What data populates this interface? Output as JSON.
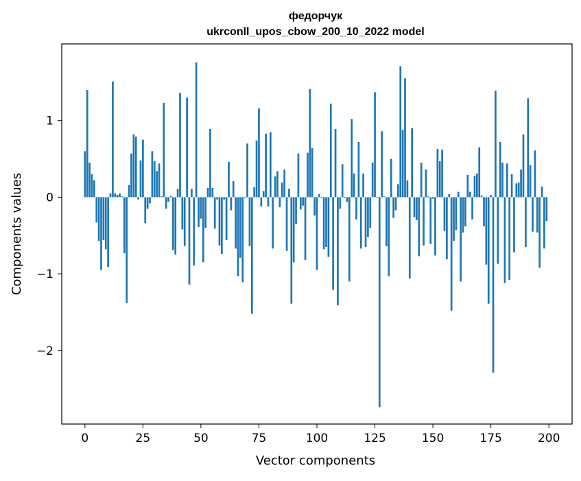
{
  "chart_data": {
    "type": "bar",
    "title": "федорчук",
    "subtitle": "ukrconll_upos_cbow_200_10_2022 model",
    "xlabel": "Vector components",
    "ylabel": "Components values",
    "xlim": [
      -10,
      210
    ],
    "ylim": [
      -2.96,
      2.0
    ],
    "xticks": [
      0,
      25,
      50,
      75,
      100,
      125,
      150,
      175,
      200
    ],
    "yticks": [
      -2,
      -1,
      0,
      1
    ],
    "ytick_labels": [
      "−2",
      "−1",
      "0",
      "1"
    ],
    "grid": false,
    "bar_color": "#1f77b4",
    "x": [
      0,
      1,
      2,
      3,
      4,
      5,
      6,
      7,
      8,
      9,
      10,
      11,
      12,
      13,
      14,
      15,
      16,
      17,
      18,
      19,
      20,
      21,
      22,
      23,
      24,
      25,
      26,
      27,
      28,
      29,
      30,
      31,
      32,
      33,
      34,
      35,
      36,
      37,
      38,
      39,
      40,
      41,
      42,
      43,
      44,
      45,
      46,
      47,
      48,
      49,
      50,
      51,
      52,
      53,
      54,
      55,
      56,
      57,
      58,
      59,
      60,
      61,
      62,
      63,
      64,
      65,
      66,
      67,
      68,
      69,
      70,
      71,
      72,
      73,
      74,
      75,
      76,
      77,
      78,
      79,
      80,
      81,
      82,
      83,
      84,
      85,
      86,
      87,
      88,
      89,
      90,
      91,
      92,
      93,
      94,
      95,
      96,
      97,
      98,
      99,
      100,
      101,
      102,
      103,
      104,
      105,
      106,
      107,
      108,
      109,
      110,
      111,
      112,
      113,
      114,
      115,
      116,
      117,
      118,
      119,
      120,
      121,
      122,
      123,
      124,
      125,
      126,
      127,
      128,
      129,
      130,
      131,
      132,
      133,
      134,
      135,
      136,
      137,
      138,
      139,
      140,
      141,
      142,
      143,
      144,
      145,
      146,
      147,
      148,
      149,
      150,
      151,
      152,
      153,
      154,
      155,
      156,
      157,
      158,
      159,
      160,
      161,
      162,
      163,
      164,
      165,
      166,
      167,
      168,
      169,
      170,
      171,
      172,
      173,
      174,
      175,
      176,
      177,
      178,
      179,
      180,
      181,
      182,
      183,
      184,
      185,
      186,
      187,
      188,
      189,
      190,
      191,
      192,
      193,
      194,
      195,
      196,
      197,
      198,
      199
    ],
    "values": [
      0.6,
      1.4,
      0.45,
      0.3,
      0.22,
      -0.33,
      -0.57,
      -0.95,
      -0.56,
      -0.68,
      -0.91,
      0.05,
      1.51,
      0.05,
      0.03,
      0.05,
      0.01,
      -0.73,
      -1.38,
      0.16,
      0.57,
      0.82,
      0.79,
      -0.03,
      0.48,
      0.75,
      -0.34,
      -0.15,
      -0.08,
      0.6,
      0.47,
      0.34,
      0.44,
      0.01,
      1.23,
      -0.15,
      -0.06,
      0.02,
      -0.69,
      -0.75,
      0.11,
      1.36,
      -0.42,
      -0.64,
      1.3,
      -1.14,
      0.11,
      -0.89,
      1.76,
      -0.39,
      -0.28,
      -0.85,
      -0.4,
      0.12,
      0.89,
      0.12,
      -0.41,
      -0.03,
      -0.63,
      -0.74,
      -0.03,
      -0.56,
      0.46,
      -0.17,
      0.21,
      -0.67,
      -1.03,
      -0.79,
      -1.11,
      -0.01,
      0.7,
      -0.64,
      -1.52,
      0.13,
      0.74,
      1.16,
      -0.12,
      0.08,
      0.83,
      -0.12,
      0.85,
      -0.67,
      0.27,
      0.34,
      -0.13,
      0.19,
      0.36,
      -0.7,
      0.11,
      -1.39,
      -0.85,
      -0.35,
      0.57,
      -0.16,
      -0.11,
      -0.82,
      0.58,
      1.41,
      0.64,
      -0.24,
      -0.95,
      0.04,
      -0.01,
      -0.68,
      -0.65,
      -0.78,
      1.22,
      -1.21,
      0.89,
      -1.41,
      -0.15,
      0.43,
      -0.01,
      -0.06,
      -1.1,
      1.02,
      0.31,
      -0.29,
      0.72,
      -0.67,
      0.31,
      -0.65,
      -0.52,
      -0.4,
      0.45,
      1.37,
      -0.01,
      -2.74,
      0.86,
      0.01,
      -0.64,
      -1.03,
      0.5,
      -0.27,
      -0.17,
      0.17,
      1.71,
      0.88,
      1.55,
      0.22,
      -1.06,
      0.9,
      -0.26,
      -0.3,
      -0.77,
      0.45,
      -0.63,
      0.36,
      0.01,
      -0.61,
      -0.02,
      -0.76,
      0.63,
      0.47,
      0.62,
      -0.44,
      -0.81,
      0.04,
      -1.48,
      -0.57,
      -0.43,
      0.07,
      -1.1,
      -0.46,
      -0.38,
      0.29,
      0.07,
      -0.29,
      0.28,
      0.31,
      0.65,
      0.02,
      -0.38,
      -0.88,
      -1.39,
      0.03,
      -2.29,
      1.39,
      -0.87,
      0.72,
      0.45,
      -1.12,
      0.44,
      -1.08,
      0.3,
      -0.72,
      0.18,
      0.19,
      0.36,
      0.82,
      -0.65,
      1.29,
      0.42,
      -0.45,
      0.61,
      -0.46,
      -0.92,
      0.14,
      -0.67,
      -0.31
    ]
  }
}
